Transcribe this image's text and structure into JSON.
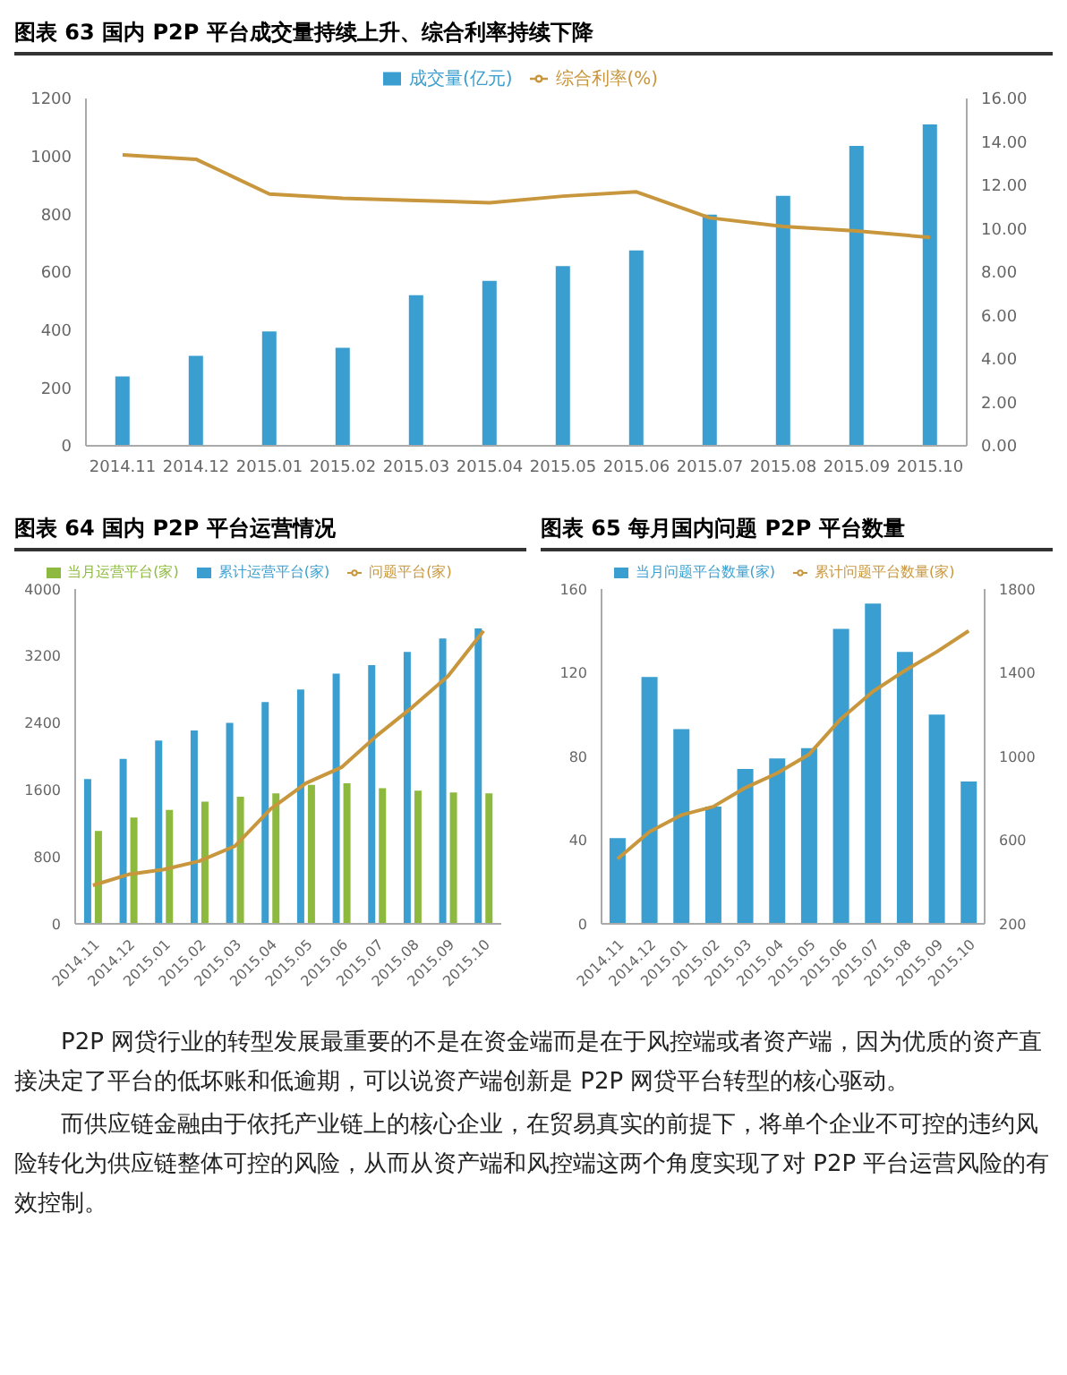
{
  "chart_data": [
    {
      "type": "bar",
      "title": "图表 63 国内 P2P 平台成交量持续上升、综合利率持续下降",
      "categories": [
        "2014.11",
        "2014.12",
        "2015.01",
        "2015.02",
        "2015.03",
        "2015.04",
        "2015.05",
        "2015.06",
        "2015.07",
        "2015.08",
        "2015.09",
        "2015.10"
      ],
      "series": [
        {
          "name": "成交量(亿元)",
          "type": "bar",
          "color": "#3a9fd0",
          "values": [
            240,
            311,
            395,
            339,
            520,
            570,
            621,
            675,
            799,
            864,
            1036,
            1110
          ]
        },
        {
          "name": "综合利率(%)",
          "type": "line",
          "axis": "y2",
          "color": "#c8963c",
          "values": [
            13.4,
            13.2,
            11.6,
            11.4,
            11.3,
            11.2,
            11.5,
            11.7,
            10.5,
            10.1,
            9.9,
            9.6
          ]
        }
      ],
      "ylim": [
        0,
        1200
      ],
      "yticks": [
        0,
        200,
        400,
        600,
        800,
        1000,
        1200
      ],
      "y2lim": [
        0,
        16
      ],
      "y2ticks": [
        {
          "value": 0,
          "label": "0.00"
        },
        {
          "value": 2,
          "label": "2.00"
        },
        {
          "value": 4,
          "label": "4.00"
        },
        {
          "value": 6,
          "label": "6.00"
        },
        {
          "value": 8,
          "label": "8.00"
        },
        {
          "value": 10,
          "label": "10.00"
        },
        {
          "value": 12,
          "label": "12.00"
        },
        {
          "value": 14,
          "label": "14.00"
        },
        {
          "value": 16,
          "label": "16.00"
        }
      ],
      "legend": "top",
      "marker": "none",
      "line_style": "solid"
    },
    {
      "type": "bar",
      "title": "图表 64 国内 P2P 平台运营情况",
      "categories": [
        "2014.11",
        "2014.12",
        "2015.01",
        "2015.02",
        "2015.03",
        "2015.04",
        "2015.05",
        "2015.06",
        "2015.07",
        "2015.08",
        "2015.09",
        "2015.10"
      ],
      "series": [
        {
          "name": "累计运营平台(家)",
          "type": "bar",
          "color": "#3a9fd0",
          "values": [
            1730,
            1970,
            2190,
            2310,
            2400,
            2650,
            2800,
            2990,
            3090,
            3250,
            3410,
            3530
          ]
        },
        {
          "name": "当月运营平台(家)",
          "type": "bar",
          "color": "#8dba3e",
          "values": [
            1110,
            1270,
            1360,
            1460,
            1520,
            1560,
            1660,
            1680,
            1620,
            1590,
            1570,
            1560
          ]
        },
        {
          "name": "问题平台(家)",
          "type": "line",
          "color": "#c8963c",
          "values": [
            460,
            590,
            650,
            750,
            930,
            1370,
            1680,
            1870,
            2250,
            2590,
            2960,
            3500
          ]
        }
      ],
      "ylim": [
        0,
        4000
      ],
      "yticks": [
        0,
        800,
        1600,
        2400,
        3200,
        4000
      ],
      "legend": "top",
      "marker": "none",
      "line_style": "solid"
    },
    {
      "type": "bar",
      "title": "图表 65 每月国内问题 P2P 平台数量",
      "categories": [
        "2014.11",
        "2014.12",
        "2015.01",
        "2015.02",
        "2015.03",
        "2015.04",
        "2015.05",
        "2015.06",
        "2015.07",
        "2015.08",
        "2015.09",
        "2015.10"
      ],
      "series": [
        {
          "name": "当月问题平台数量(家)",
          "type": "bar",
          "color": "#3a9fd0",
          "values": [
            41,
            118,
            93,
            56,
            74,
            79,
            84,
            141,
            153,
            130,
            100,
            68
          ]
        },
        {
          "name": "累计问题平台数量(家)",
          "type": "line",
          "axis": "y2",
          "color": "#c8963c",
          "values": [
            510,
            640,
            720,
            760,
            850,
            920,
            1010,
            1180,
            1310,
            1410,
            1500,
            1600
          ]
        }
      ],
      "ylim": [
        0,
        160
      ],
      "yticks": [
        0,
        40,
        80,
        120,
        160
      ],
      "y2lim": [
        200,
        1800
      ],
      "y2ticks": [
        200,
        600,
        1000,
        1400,
        1800
      ],
      "legend": "top",
      "marker": "none",
      "line_style": "solid"
    },
    {
      "type": "other",
      "annotations": [
        "P2P 网贷行业的转型发展最重要的不是在资金端而是在于风控端或者资产端，因为优质的资产直接决定了平台的低坏账和低逾期，可以说资产端创新是 P2P 网贷平台转型的核心驱动。",
        "而供应链金融由于依托产业链上的核心企业，在贸易真实的前提下，将单个企业不可控的违约风险转化为供应链整体可控的风险，从而从资产端和风控端这两个角度实现了对 P2P 平台运营风险的有效控制。"
      ]
    }
  ]
}
